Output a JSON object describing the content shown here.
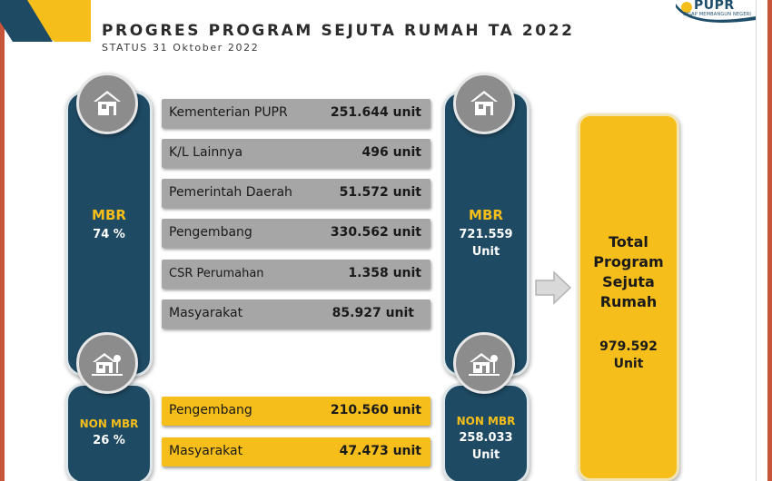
{
  "header": {
    "title": "PROGRES PROGRAM SEJUTA RUMAH TA 2022",
    "subtitle": "STATUS 31 Oktober 2022"
  },
  "logo": {
    "name": "PUPR",
    "tagline": "SIGAP MEMBANGUN NEGERI"
  },
  "colors": {
    "navy": "#1e4a63",
    "yellow": "#f5be1b",
    "gray": "#a6a6a6",
    "frame": "#c8553a"
  },
  "left_mbr": {
    "label": "MBR",
    "value": "74 %",
    "icon": "house-icon"
  },
  "left_non_mbr": {
    "label": "NON MBR",
    "value": "26 %",
    "icon": "house-tree-icon"
  },
  "mbr_rows": [
    {
      "name": "Kementerian PUPR",
      "value": "251.644 unit"
    },
    {
      "name": "K/L Lainnya",
      "value": "496 unit"
    },
    {
      "name": "Pemerintah Daerah",
      "value": "51.572 unit"
    },
    {
      "name": "Pengembang",
      "value": "330.562 unit"
    },
    {
      "name": "CSR Perumahan",
      "value": "1.358 unit"
    },
    {
      "name": "Masyarakat",
      "value": "85.927 unit"
    }
  ],
  "non_mbr_rows": [
    {
      "name": "Pengembang",
      "value": "210.560 unit"
    },
    {
      "name": "Masyarakat",
      "value": "47.473 unit"
    }
  ],
  "right_mbr": {
    "label": "MBR",
    "value": "721.559",
    "unit": "Unit",
    "icon": "house-icon"
  },
  "right_non_mbr": {
    "label": "NON MBR",
    "value": "258.033",
    "unit": "Unit",
    "icon": "house-tree-icon"
  },
  "total": {
    "title_lines": [
      "Total",
      "Program",
      "Sejuta",
      "Rumah"
    ],
    "value": "979.592",
    "unit": "Unit"
  }
}
